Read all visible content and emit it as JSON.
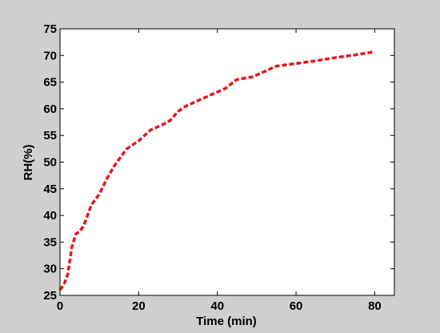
{
  "chart_data": {
    "type": "line",
    "xlabel": "Time (min)",
    "ylabel": "RH(%)",
    "xlim": [
      0,
      85
    ],
    "ylim": [
      25,
      75
    ],
    "x_ticks": [
      0,
      20,
      40,
      60,
      80
    ],
    "y_ticks": [
      25,
      30,
      35,
      40,
      45,
      50,
      55,
      60,
      65,
      70,
      75
    ],
    "grid": false,
    "series": [
      {
        "line_style": "dashed",
        "color": "#e8161b",
        "x": [
          0,
          1,
          2,
          3,
          4,
          5,
          6,
          7,
          8,
          10,
          12,
          14,
          17,
          20,
          23,
          26,
          28,
          30,
          32,
          35,
          38,
          42,
          45,
          49,
          52,
          55,
          60,
          65,
          70,
          75,
          80
        ],
        "y": [
          26.0,
          27.0,
          29.0,
          34.0,
          36.5,
          37.0,
          38.0,
          40.0,
          42.0,
          44.0,
          47.0,
          49.5,
          52.5,
          54.0,
          56.0,
          57.0,
          57.8,
          59.5,
          60.5,
          61.5,
          62.5,
          63.8,
          65.5,
          66.0,
          67.0,
          68.0,
          68.5,
          69.0,
          69.6,
          70.1,
          70.7
        ]
      }
    ]
  },
  "colors": {
    "frame_background": "#cfcfcf",
    "plot_background": "#ffffff",
    "axis": "#000000",
    "series": "#e8161b"
  }
}
